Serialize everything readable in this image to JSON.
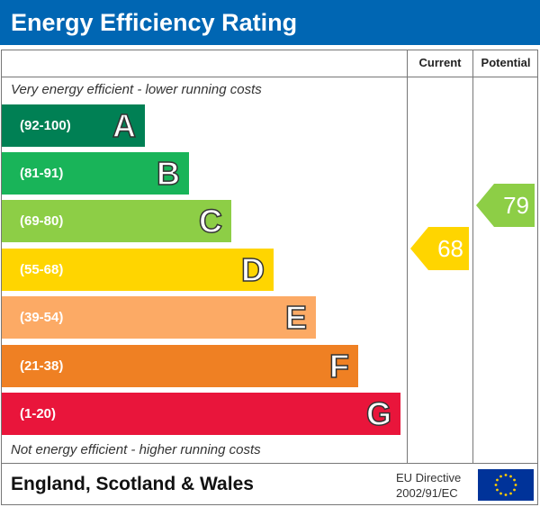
{
  "title": "Energy Efficiency Rating",
  "columns": {
    "current": "Current",
    "potential": "Potential"
  },
  "notes": {
    "top": "Very energy efficient - lower running costs",
    "bottom": "Not energy efficient - higher running costs"
  },
  "footer": {
    "region": "England, Scotland & Wales",
    "directive_line1": "EU Directive",
    "directive_line2": "2002/91/EC"
  },
  "chart_data": {
    "type": "bar",
    "title": "Energy Efficiency Rating",
    "bands": [
      {
        "letter": "A",
        "range": "(92-100)",
        "color": "#008054"
      },
      {
        "letter": "B",
        "range": "(81-91)",
        "color": "#19b459"
      },
      {
        "letter": "C",
        "range": "(69-80)",
        "color": "#8dce46"
      },
      {
        "letter": "D",
        "range": "(55-68)",
        "color": "#ffd500"
      },
      {
        "letter": "E",
        "range": "(39-54)",
        "color": "#fcaa65"
      },
      {
        "letter": "F",
        "range": "(21-38)",
        "color": "#ef8023"
      },
      {
        "letter": "G",
        "range": "(1-20)",
        "color": "#e9153b"
      }
    ],
    "current": {
      "value": "68",
      "band": "D",
      "color": "#ffd500"
    },
    "potential": {
      "value": "79",
      "band": "C",
      "color": "#8dce46"
    }
  }
}
